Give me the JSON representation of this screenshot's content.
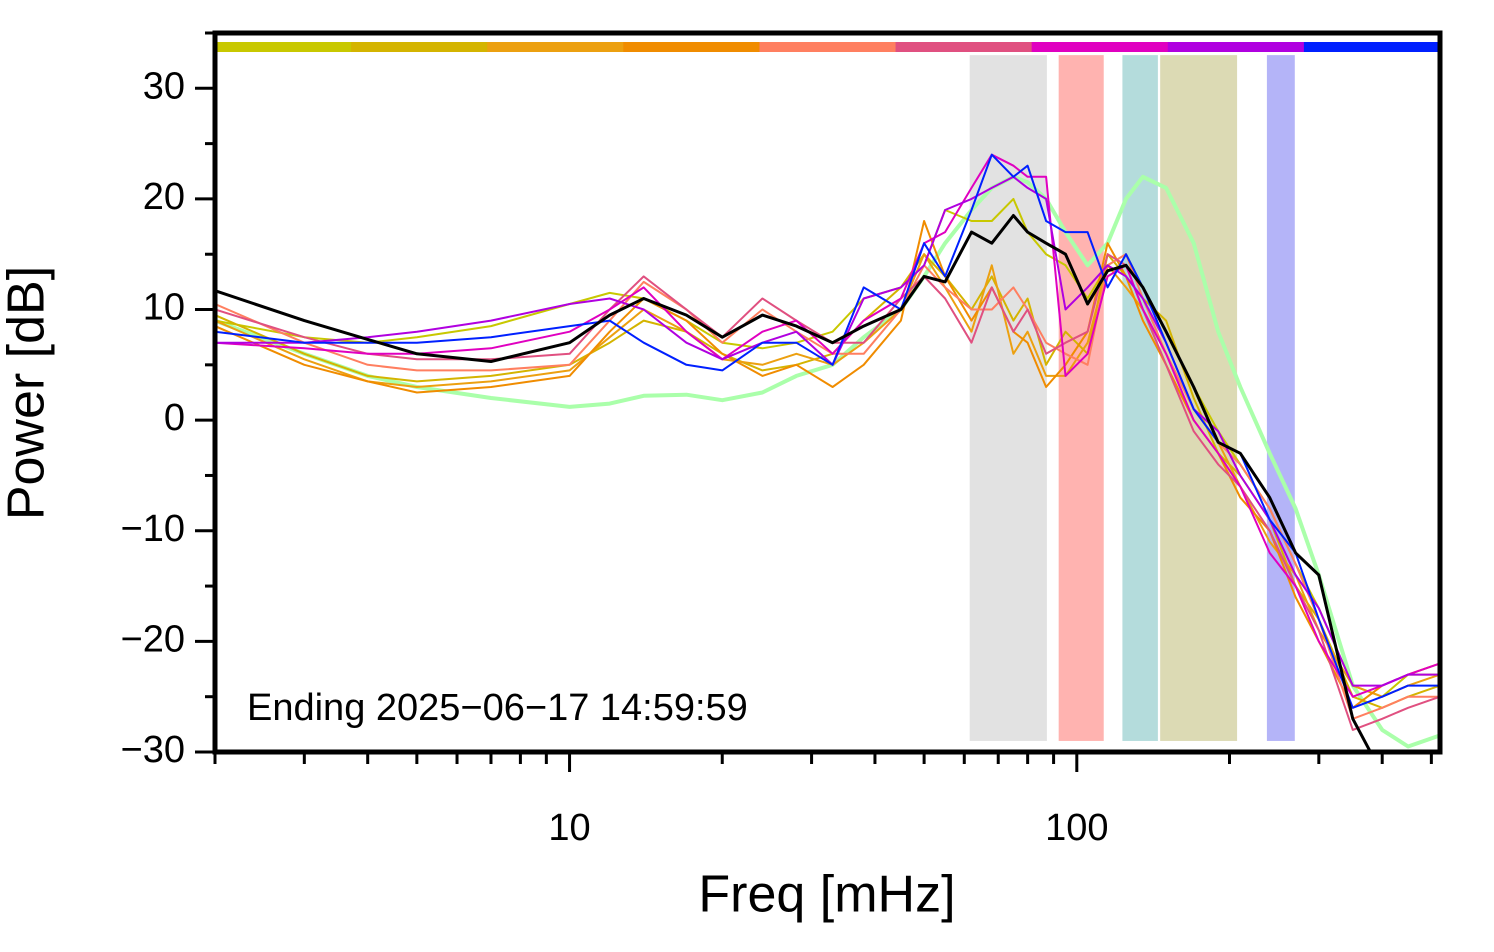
{
  "chart_data": {
    "type": "line",
    "xlabel": "Freq [mHz]",
    "ylabel": "Power [dB]",
    "annotation": "Ending 2025−06−17 14:59:59",
    "xscale": "log",
    "xlim": [
      2,
      520
    ],
    "ylim": [
      -30,
      35
    ],
    "xticks": [
      10,
      100
    ],
    "xminorticks": [
      2,
      3,
      4,
      5,
      6,
      7,
      8,
      9,
      20,
      30,
      40,
      50,
      60,
      70,
      80,
      90,
      200,
      300,
      400,
      500
    ],
    "yticks": [
      {
        "value": -30,
        "label": "−30"
      },
      {
        "value": -20,
        "label": "−20"
      },
      {
        "value": -10,
        "label": "−10"
      },
      0,
      10,
      20,
      30
    ],
    "yminorticks": [
      -25,
      -15,
      -5,
      5,
      15,
      25,
      35
    ],
    "colorbar": [
      "#c8c800",
      "#d4b400",
      "#eca010",
      "#f08c00",
      "#ff7f60",
      "#e05080",
      "#e000c0",
      "#b000e0",
      "#0020ff"
    ],
    "band_ylim": [
      -29,
      33
    ],
    "bands": [
      {
        "range": [
          61.5,
          87.3
        ],
        "color": "#e2e2e2"
      },
      {
        "range": [
          92.1,
          113
        ],
        "color": "#ffb3b0"
      },
      {
        "range": [
          123,
          144.5
        ],
        "color": "#b4dcdc"
      },
      {
        "range": [
          146,
          207
        ],
        "color": "#dcdab4"
      },
      {
        "range": [
          237,
          269
        ],
        "color": "#b4b4f8"
      }
    ],
    "x": [
      2,
      3,
      4,
      5,
      7,
      10,
      12,
      14,
      17,
      20,
      24,
      28,
      33,
      38,
      45,
      50,
      55,
      62,
      68,
      75,
      80,
      87,
      95,
      105,
      115,
      125,
      135,
      150,
      170,
      190,
      210,
      240,
      270,
      300,
      350,
      400,
      450,
      520
    ],
    "series": [
      {
        "color": "#aaffaa",
        "line_width": 4,
        "values": [
          9,
          6,
          4,
          3,
          2,
          1.2,
          1.5,
          2.2,
          2.3,
          1.8,
          2.5,
          4,
          5,
          7.5,
          10,
          13,
          16,
          19,
          21,
          22,
          21.5,
          20,
          17,
          14,
          16,
          20,
          22,
          21,
          16,
          8,
          3,
          -3,
          -8,
          -14,
          -24,
          -28,
          -29.5,
          -28.5
        ]
      },
      {
        "color": "#c8c800",
        "line_width": 2,
        "values": [
          9,
          7.5,
          7,
          7.5,
          8.5,
          10.5,
          11.5,
          11,
          9,
          7,
          6.5,
          7,
          8,
          11,
          12,
          14,
          19,
          18,
          18,
          20,
          17,
          15,
          14,
          11,
          14,
          15,
          12,
          8,
          3,
          -1,
          -4,
          -8,
          -13,
          -17,
          -24,
          -25,
          -23,
          -23
        ]
      },
      {
        "color": "#d4b400",
        "line_width": 2,
        "values": [
          9.5,
          6,
          4,
          3.5,
          4,
          5,
          7,
          9,
          8,
          6,
          4.5,
          5,
          6,
          9,
          12,
          15,
          13,
          10,
          13,
          9,
          11,
          5,
          8,
          6,
          15,
          13,
          11,
          9,
          2,
          -3,
          -5,
          -9,
          -15,
          -18,
          -25,
          -26,
          -25,
          -24
        ]
      },
      {
        "color": "#eca010",
        "line_width": 2,
        "values": [
          9,
          5.5,
          3.5,
          3,
          3.5,
          4.5,
          7.5,
          10,
          8,
          5.5,
          5,
          6,
          5,
          7,
          10,
          15,
          12,
          8,
          14,
          6,
          8,
          4,
          4,
          7,
          14,
          12,
          10,
          6,
          1,
          -2,
          -6,
          -11,
          -14,
          -19,
          -24,
          -25,
          -24,
          -23
        ]
      },
      {
        "color": "#f08c00",
        "line_width": 2,
        "values": [
          8.5,
          5,
          3.5,
          2.5,
          3,
          4,
          8,
          11,
          9,
          6,
          4,
          5,
          3,
          5,
          9,
          18,
          13,
          9,
          12,
          8,
          7,
          3,
          5,
          8,
          16,
          13,
          9,
          5,
          0,
          -3,
          -7,
          -10,
          -16,
          -20,
          -26,
          -24,
          -23,
          -22
        ]
      },
      {
        "color": "#ff7f60",
        "line_width": 2,
        "values": [
          10.5,
          7,
          5,
          4.5,
          4.5,
          5,
          9,
          12.5,
          10,
          7,
          10,
          8,
          6,
          6,
          10,
          14,
          12,
          10,
          10,
          12,
          10,
          7,
          6,
          5,
          14,
          15,
          11,
          6,
          1,
          -2,
          -4,
          -8,
          -13,
          -18,
          -27,
          -26,
          -25,
          -25
        ]
      },
      {
        "color": "#e05080",
        "line_width": 2,
        "values": [
          10,
          7.5,
          6,
          5.5,
          5.5,
          6,
          10,
          13,
          10,
          7.5,
          11,
          9,
          7,
          7,
          11,
          13,
          11,
          7,
          12,
          8,
          10,
          6,
          7,
          8,
          15,
          14,
          10,
          5,
          -1,
          -4,
          -6,
          -10,
          -15,
          -19,
          -28,
          -27,
          -26,
          -25
        ]
      },
      {
        "color": "#e000c0",
        "line_width": 2,
        "values": [
          7,
          6.5,
          6,
          6,
          6.5,
          8,
          10,
          12,
          8,
          5.5,
          8,
          9,
          6,
          9,
          11,
          16,
          17,
          21,
          24,
          23,
          22,
          22,
          4,
          6,
          13,
          14,
          10,
          6,
          0,
          -3,
          -6,
          -12,
          -15,
          -20,
          -25,
          -24,
          -23,
          -22
        ]
      },
      {
        "color": "#b000e0",
        "line_width": 2,
        "values": [
          7,
          7,
          7.5,
          8,
          9,
          10.5,
          11,
          10,
          7,
          5.5,
          7,
          8,
          5,
          11,
          12,
          14,
          19,
          20,
          21,
          22,
          21,
          20,
          10,
          12,
          14,
          13,
          11,
          7,
          1,
          -1,
          -5,
          -9,
          -14,
          -17,
          -24,
          -24,
          -23,
          -23
        ]
      },
      {
        "color": "#0020ff",
        "line_width": 2,
        "values": [
          8,
          7,
          7,
          7,
          7.5,
          8.5,
          9,
          7,
          5,
          4.5,
          7,
          7,
          5,
          12,
          10,
          16,
          13,
          19,
          24,
          22,
          23,
          18,
          17,
          17,
          12,
          15,
          12,
          7,
          1,
          -2,
          -3,
          -9,
          -12,
          -18,
          -26,
          -25,
          -24,
          -24
        ]
      },
      {
        "color": "#000000",
        "line_width": 3,
        "values": [
          11.7,
          9,
          7.3,
          6,
          5.3,
          7,
          9.5,
          11,
          9.5,
          7.5,
          9.5,
          8.5,
          7,
          8.5,
          10,
          13,
          12.5,
          17,
          16,
          18.5,
          17,
          16,
          15,
          10.5,
          13.5,
          14,
          12,
          8,
          3,
          -2,
          -3,
          -7,
          -12,
          -14,
          -27,
          -32,
          null,
          null
        ]
      }
    ]
  }
}
